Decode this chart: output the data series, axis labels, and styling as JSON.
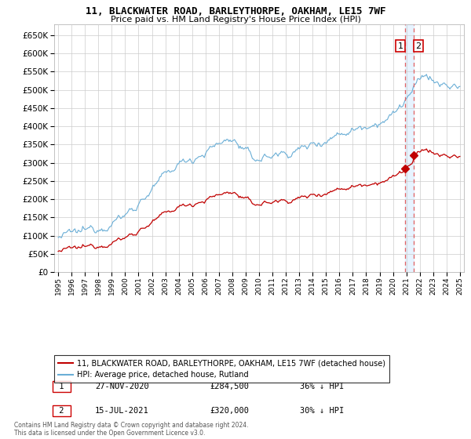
{
  "title": "11, BLACKWATER ROAD, BARLEYTHORPE, OAKHAM, LE15 7WF",
  "subtitle": "Price paid vs. HM Land Registry's House Price Index (HPI)",
  "hpi_label": "HPI: Average price, detached house, Rutland",
  "property_label": "11, BLACKWATER ROAD, BARLEYTHORPE, OAKHAM, LE15 7WF (detached house)",
  "footer": "Contains HM Land Registry data © Crown copyright and database right 2024.\nThis data is licensed under the Open Government Licence v3.0.",
  "hpi_color": "#6aaed6",
  "property_color": "#c00000",
  "dashed_color": "#e06060",
  "fill_color": "#ddeeff",
  "sale1_date": "27-NOV-2020",
  "sale1_price": 284500,
  "sale1_pct": "36% ↓ HPI",
  "sale2_date": "15-JUL-2021",
  "sale2_price": 320000,
  "sale2_pct": "30% ↓ HPI",
  "ylim": [
    0,
    680000
  ],
  "yticks": [
    0,
    50000,
    100000,
    150000,
    200000,
    250000,
    300000,
    350000,
    400000,
    450000,
    500000,
    550000,
    600000,
    650000
  ],
  "background_color": "#ffffff",
  "grid_color": "#cccccc"
}
